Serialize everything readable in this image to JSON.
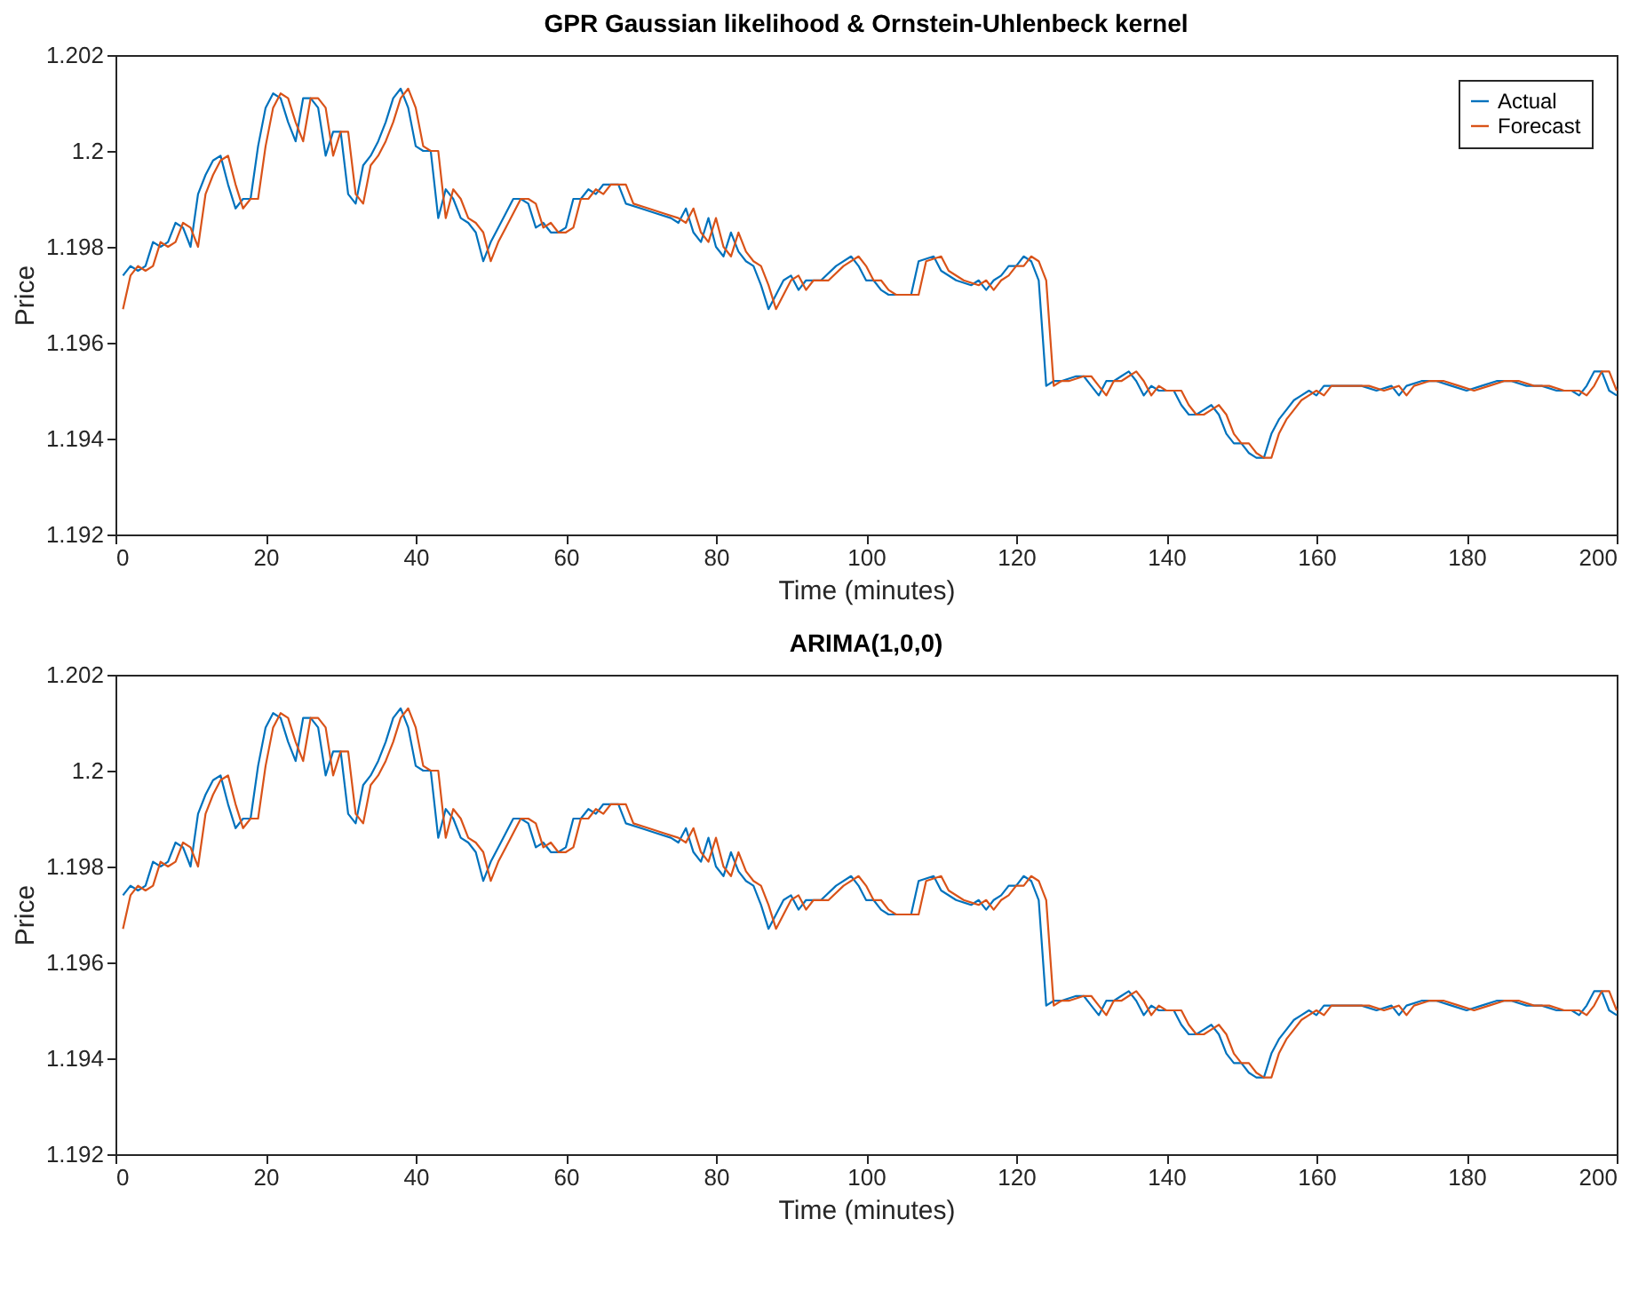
{
  "chart_data": [
    {
      "type": "line",
      "title": "GPR Gaussian likelihood & Ornstein-Uhlenbeck kernel",
      "xlabel": "Time (minutes)",
      "ylabel": "Price",
      "xlim": [
        0,
        200
      ],
      "xticks": [
        0,
        20,
        40,
        60,
        80,
        100,
        120,
        140,
        160,
        180,
        200
      ],
      "ylim": [
        1.192,
        1.202
      ],
      "yticks": [
        1.192,
        1.194,
        1.196,
        1.198,
        1.2,
        1.202
      ],
      "grid": false,
      "legend": "top right",
      "marker": "none",
      "line_style": "solid",
      "series": [
        {
          "name": "Actual",
          "color": "#0072bd",
          "x": [
            1,
            2,
            3,
            4,
            5,
            6,
            7,
            8,
            9,
            10,
            11,
            12,
            13,
            14,
            15,
            16,
            17,
            18,
            19,
            20,
            21,
            22,
            23,
            24,
            25,
            26,
            27,
            28,
            29,
            30,
            31,
            32,
            33,
            34,
            35,
            36,
            37,
            38,
            39,
            40,
            41,
            42,
            43,
            44,
            45,
            46,
            47,
            48,
            49,
            50,
            51,
            52,
            53,
            54,
            55,
            56,
            57,
            58,
            59,
            60,
            61,
            62,
            63,
            64,
            65,
            66,
            67,
            68,
            70,
            72,
            74,
            75,
            76,
            77,
            78,
            79,
            80,
            81,
            82,
            83,
            84,
            85,
            86,
            87,
            88,
            89,
            90,
            91,
            92,
            93,
            94,
            96,
            98,
            99,
            100,
            101,
            102,
            103,
            106,
            107,
            109,
            110,
            112,
            114,
            115,
            116,
            117,
            118,
            119,
            120,
            121,
            122,
            123,
            124,
            125,
            126,
            128,
            129,
            130,
            131,
            132,
            133,
            134,
            135,
            136,
            137,
            138,
            139,
            140,
            141,
            142,
            143,
            144,
            145,
            146,
            147,
            148,
            149,
            150,
            151,
            152,
            153,
            154,
            155,
            156,
            157,
            158,
            159,
            160,
            161,
            162,
            164,
            166,
            168,
            170,
            171,
            172,
            174,
            176,
            178,
            180,
            182,
            184,
            186,
            188,
            190,
            192,
            194,
            195,
            196,
            197,
            198,
            199,
            200
          ],
          "values": [
            1.1974,
            1.1976,
            1.1975,
            1.1976,
            1.1981,
            1.198,
            1.1981,
            1.1985,
            1.1984,
            1.198,
            1.1991,
            1.1995,
            1.1998,
            1.1999,
            1.1993,
            1.1988,
            1.199,
            1.199,
            1.2001,
            1.2009,
            1.2012,
            1.2011,
            1.2006,
            1.2002,
            1.2011,
            1.2011,
            1.2009,
            1.1999,
            1.2004,
            1.2004,
            1.1991,
            1.1989,
            1.1997,
            1.1999,
            1.2002,
            1.2006,
            1.2011,
            1.2013,
            1.2009,
            1.2001,
            1.2,
            1.2,
            1.1986,
            1.1992,
            1.199,
            1.1986,
            1.1985,
            1.1983,
            1.1977,
            1.1981,
            1.1984,
            1.1987,
            1.199,
            1.199,
            1.1989,
            1.1984,
            1.1985,
            1.1983,
            1.1983,
            1.1984,
            1.199,
            1.199,
            1.1992,
            1.1991,
            1.1993,
            1.1993,
            1.1993,
            1.1989,
            1.1988,
            1.1987,
            1.1986,
            1.1985,
            1.1988,
            1.1983,
            1.1981,
            1.1986,
            1.198,
            1.1978,
            1.1983,
            1.1979,
            1.1977,
            1.1976,
            1.1972,
            1.1967,
            1.197,
            1.1973,
            1.1974,
            1.1971,
            1.1973,
            1.1973,
            1.1973,
            1.1976,
            1.1978,
            1.1976,
            1.1973,
            1.1973,
            1.1971,
            1.197,
            1.197,
            1.1977,
            1.1978,
            1.1975,
            1.1973,
            1.1972,
            1.1973,
            1.1971,
            1.1973,
            1.1974,
            1.1976,
            1.1976,
            1.1978,
            1.1977,
            1.1973,
            1.1951,
            1.1952,
            1.1952,
            1.1953,
            1.1953,
            1.1951,
            1.1949,
            1.1952,
            1.1952,
            1.1953,
            1.1954,
            1.1952,
            1.1949,
            1.1951,
            1.195,
            1.195,
            1.195,
            1.1947,
            1.1945,
            1.1945,
            1.1946,
            1.1947,
            1.1945,
            1.1941,
            1.1939,
            1.1939,
            1.1937,
            1.1936,
            1.1936,
            1.1941,
            1.1944,
            1.1946,
            1.1948,
            1.1949,
            1.195,
            1.1949,
            1.1951,
            1.1951,
            1.1951,
            1.1951,
            1.195,
            1.1951,
            1.1949,
            1.1951,
            1.1952,
            1.1952,
            1.1951,
            1.195,
            1.1951,
            1.1952,
            1.1952,
            1.1951,
            1.1951,
            1.195,
            1.195,
            1.1949,
            1.1951,
            1.1954,
            1.1954,
            1.195,
            1.1949
          ]
        },
        {
          "name": "Forecast",
          "color": "#d95319",
          "x": [
            1,
            2,
            3,
            4,
            5,
            6,
            7,
            8,
            9,
            10,
            11,
            12,
            13,
            14,
            15,
            16,
            17,
            18,
            19,
            20,
            21,
            22,
            23,
            24,
            25,
            26,
            27,
            28,
            29,
            30,
            31,
            32,
            33,
            34,
            35,
            36,
            37,
            38,
            39,
            40,
            41,
            42,
            43,
            44,
            45,
            46,
            47,
            48,
            49,
            50,
            51,
            52,
            53,
            54,
            55,
            56,
            57,
            58,
            59,
            60,
            61,
            62,
            63,
            64,
            65,
            66,
            67,
            68,
            69,
            71,
            73,
            75,
            76,
            77,
            78,
            79,
            80,
            81,
            82,
            83,
            84,
            85,
            86,
            87,
            88,
            89,
            90,
            91,
            92,
            93,
            94,
            95,
            97,
            99,
            100,
            101,
            102,
            103,
            104,
            107,
            108,
            110,
            111,
            113,
            115,
            116,
            117,
            118,
            119,
            120,
            121,
            122,
            123,
            124,
            125,
            126,
            127,
            129,
            130,
            131,
            132,
            133,
            134,
            135,
            136,
            137,
            138,
            139,
            140,
            141,
            142,
            143,
            144,
            145,
            146,
            147,
            148,
            149,
            150,
            151,
            152,
            153,
            154,
            155,
            156,
            157,
            158,
            159,
            160,
            161,
            162,
            163,
            165,
            167,
            169,
            171,
            172,
            173,
            175,
            177,
            179,
            181,
            183,
            185,
            187,
            189,
            191,
            193,
            195,
            196,
            197,
            198,
            199,
            200
          ],
          "values": [
            1.1967,
            1.1974,
            1.1976,
            1.1975,
            1.1976,
            1.1981,
            1.198,
            1.1981,
            1.1985,
            1.1984,
            1.198,
            1.1991,
            1.1995,
            1.1998,
            1.1999,
            1.1993,
            1.1988,
            1.199,
            1.199,
            1.2001,
            1.2009,
            1.2012,
            1.2011,
            1.2006,
            1.2002,
            1.2011,
            1.2011,
            1.2009,
            1.1999,
            1.2004,
            1.2004,
            1.1991,
            1.1989,
            1.1997,
            1.1999,
            1.2002,
            1.2006,
            1.2011,
            1.2013,
            1.2009,
            1.2001,
            1.2,
            1.2,
            1.1986,
            1.1992,
            1.199,
            1.1986,
            1.1985,
            1.1983,
            1.1977,
            1.1981,
            1.1984,
            1.1987,
            1.199,
            1.199,
            1.1989,
            1.1984,
            1.1985,
            1.1983,
            1.1983,
            1.1984,
            1.199,
            1.199,
            1.1992,
            1.1991,
            1.1993,
            1.1993,
            1.1993,
            1.1989,
            1.1988,
            1.1987,
            1.1986,
            1.1985,
            1.1988,
            1.1983,
            1.1981,
            1.1986,
            1.198,
            1.1978,
            1.1983,
            1.1979,
            1.1977,
            1.1976,
            1.1972,
            1.1967,
            1.197,
            1.1973,
            1.1974,
            1.1971,
            1.1973,
            1.1973,
            1.1973,
            1.1976,
            1.1978,
            1.1976,
            1.1973,
            1.1973,
            1.1971,
            1.197,
            1.197,
            1.1977,
            1.1978,
            1.1975,
            1.1973,
            1.1972,
            1.1973,
            1.1971,
            1.1973,
            1.1974,
            1.1976,
            1.1976,
            1.1978,
            1.1977,
            1.1973,
            1.1951,
            1.1952,
            1.1952,
            1.1953,
            1.1953,
            1.1951,
            1.1949,
            1.1952,
            1.1952,
            1.1953,
            1.1954,
            1.1952,
            1.1949,
            1.1951,
            1.195,
            1.195,
            1.195,
            1.1947,
            1.1945,
            1.1945,
            1.1946,
            1.1947,
            1.1945,
            1.1941,
            1.1939,
            1.1939,
            1.1937,
            1.1936,
            1.1936,
            1.1941,
            1.1944,
            1.1946,
            1.1948,
            1.1949,
            1.195,
            1.1949,
            1.1951,
            1.1951,
            1.1951,
            1.1951,
            1.195,
            1.1951,
            1.1949,
            1.1951,
            1.1952,
            1.1952,
            1.1951,
            1.195,
            1.1951,
            1.1952,
            1.1952,
            1.1951,
            1.1951,
            1.195,
            1.195,
            1.1949,
            1.1951,
            1.1954,
            1.1954,
            1.195
          ]
        }
      ]
    },
    {
      "type": "line",
      "title": "ARIMA(1,0,0)",
      "xlabel": "Time (minutes)",
      "ylabel": "Price",
      "xlim": [
        0,
        200
      ],
      "xticks": [
        0,
        20,
        40,
        60,
        80,
        100,
        120,
        140,
        160,
        180,
        200
      ],
      "ylim": [
        1.192,
        1.202
      ],
      "yticks": [
        1.192,
        1.194,
        1.196,
        1.198,
        1.2,
        1.202
      ],
      "grid": false,
      "legend": "top right",
      "marker": "none",
      "line_style": "solid",
      "series": [
        {
          "name": "Actual",
          "color": "#0072bd",
          "x": [
            1,
            2,
            3,
            4,
            5,
            6,
            7,
            8,
            9,
            10,
            11,
            12,
            13,
            14,
            15,
            16,
            17,
            18,
            19,
            20,
            21,
            22,
            23,
            24,
            25,
            26,
            27,
            28,
            29,
            30,
            31,
            32,
            33,
            34,
            35,
            36,
            37,
            38,
            39,
            40,
            41,
            42,
            43,
            44,
            45,
            46,
            47,
            48,
            49,
            50,
            51,
            52,
            53,
            54,
            55,
            56,
            57,
            58,
            59,
            60,
            61,
            62,
            63,
            64,
            65,
            66,
            67,
            68,
            70,
            72,
            74,
            75,
            76,
            77,
            78,
            79,
            80,
            81,
            82,
            83,
            84,
            85,
            86,
            87,
            88,
            89,
            90,
            91,
            92,
            93,
            94,
            96,
            98,
            99,
            100,
            101,
            102,
            103,
            106,
            107,
            109,
            110,
            112,
            114,
            115,
            116,
            117,
            118,
            119,
            120,
            121,
            122,
            123,
            124,
            125,
            126,
            128,
            129,
            130,
            131,
            132,
            133,
            134,
            135,
            136,
            137,
            138,
            139,
            140,
            141,
            142,
            143,
            144,
            145,
            146,
            147,
            148,
            149,
            150,
            151,
            152,
            153,
            154,
            155,
            156,
            157,
            158,
            159,
            160,
            161,
            162,
            164,
            166,
            168,
            170,
            171,
            172,
            174,
            176,
            178,
            180,
            182,
            184,
            186,
            188,
            190,
            192,
            194,
            195,
            196,
            197,
            198,
            199,
            200
          ],
          "values": [
            1.1974,
            1.1976,
            1.1975,
            1.1976,
            1.1981,
            1.198,
            1.1981,
            1.1985,
            1.1984,
            1.198,
            1.1991,
            1.1995,
            1.1998,
            1.1999,
            1.1993,
            1.1988,
            1.199,
            1.199,
            1.2001,
            1.2009,
            1.2012,
            1.2011,
            1.2006,
            1.2002,
            1.2011,
            1.2011,
            1.2009,
            1.1999,
            1.2004,
            1.2004,
            1.1991,
            1.1989,
            1.1997,
            1.1999,
            1.2002,
            1.2006,
            1.2011,
            1.2013,
            1.2009,
            1.2001,
            1.2,
            1.2,
            1.1986,
            1.1992,
            1.199,
            1.1986,
            1.1985,
            1.1983,
            1.1977,
            1.1981,
            1.1984,
            1.1987,
            1.199,
            1.199,
            1.1989,
            1.1984,
            1.1985,
            1.1983,
            1.1983,
            1.1984,
            1.199,
            1.199,
            1.1992,
            1.1991,
            1.1993,
            1.1993,
            1.1993,
            1.1989,
            1.1988,
            1.1987,
            1.1986,
            1.1985,
            1.1988,
            1.1983,
            1.1981,
            1.1986,
            1.198,
            1.1978,
            1.1983,
            1.1979,
            1.1977,
            1.1976,
            1.1972,
            1.1967,
            1.197,
            1.1973,
            1.1974,
            1.1971,
            1.1973,
            1.1973,
            1.1973,
            1.1976,
            1.1978,
            1.1976,
            1.1973,
            1.1973,
            1.1971,
            1.197,
            1.197,
            1.1977,
            1.1978,
            1.1975,
            1.1973,
            1.1972,
            1.1973,
            1.1971,
            1.1973,
            1.1974,
            1.1976,
            1.1976,
            1.1978,
            1.1977,
            1.1973,
            1.1951,
            1.1952,
            1.1952,
            1.1953,
            1.1953,
            1.1951,
            1.1949,
            1.1952,
            1.1952,
            1.1953,
            1.1954,
            1.1952,
            1.1949,
            1.1951,
            1.195,
            1.195,
            1.195,
            1.1947,
            1.1945,
            1.1945,
            1.1946,
            1.1947,
            1.1945,
            1.1941,
            1.1939,
            1.1939,
            1.1937,
            1.1936,
            1.1936,
            1.1941,
            1.1944,
            1.1946,
            1.1948,
            1.1949,
            1.195,
            1.1949,
            1.1951,
            1.1951,
            1.1951,
            1.1951,
            1.195,
            1.1951,
            1.1949,
            1.1951,
            1.1952,
            1.1952,
            1.1951,
            1.195,
            1.1951,
            1.1952,
            1.1952,
            1.1951,
            1.1951,
            1.195,
            1.195,
            1.1949,
            1.1951,
            1.1954,
            1.1954,
            1.195,
            1.1949
          ]
        },
        {
          "name": "Forecast",
          "color": "#d95319",
          "x": [
            1,
            2,
            3,
            4,
            5,
            6,
            7,
            8,
            9,
            10,
            11,
            12,
            13,
            14,
            15,
            16,
            17,
            18,
            19,
            20,
            21,
            22,
            23,
            24,
            25,
            26,
            27,
            28,
            29,
            30,
            31,
            32,
            33,
            34,
            35,
            36,
            37,
            38,
            39,
            40,
            41,
            42,
            43,
            44,
            45,
            46,
            47,
            48,
            49,
            50,
            51,
            52,
            53,
            54,
            55,
            56,
            57,
            58,
            59,
            60,
            61,
            62,
            63,
            64,
            65,
            66,
            67,
            68,
            69,
            71,
            73,
            75,
            76,
            77,
            78,
            79,
            80,
            81,
            82,
            83,
            84,
            85,
            86,
            87,
            88,
            89,
            90,
            91,
            92,
            93,
            94,
            95,
            97,
            99,
            100,
            101,
            102,
            103,
            104,
            107,
            108,
            110,
            111,
            113,
            115,
            116,
            117,
            118,
            119,
            120,
            121,
            122,
            123,
            124,
            125,
            126,
            127,
            129,
            130,
            131,
            132,
            133,
            134,
            135,
            136,
            137,
            138,
            139,
            140,
            141,
            142,
            143,
            144,
            145,
            146,
            147,
            148,
            149,
            150,
            151,
            152,
            153,
            154,
            155,
            156,
            157,
            158,
            159,
            160,
            161,
            162,
            163,
            165,
            167,
            169,
            171,
            172,
            173,
            175,
            177,
            179,
            181,
            183,
            185,
            187,
            189,
            191,
            193,
            195,
            196,
            197,
            198,
            199,
            200
          ],
          "values": [
            1.1967,
            1.1974,
            1.1976,
            1.1975,
            1.1976,
            1.1981,
            1.198,
            1.1981,
            1.1985,
            1.1984,
            1.198,
            1.1991,
            1.1995,
            1.1998,
            1.1999,
            1.1993,
            1.1988,
            1.199,
            1.199,
            1.2001,
            1.2009,
            1.2012,
            1.2011,
            1.2006,
            1.2002,
            1.2011,
            1.2011,
            1.2009,
            1.1999,
            1.2004,
            1.2004,
            1.1991,
            1.1989,
            1.1997,
            1.1999,
            1.2002,
            1.2006,
            1.2011,
            1.2013,
            1.2009,
            1.2001,
            1.2,
            1.2,
            1.1986,
            1.1992,
            1.199,
            1.1986,
            1.1985,
            1.1983,
            1.1977,
            1.1981,
            1.1984,
            1.1987,
            1.199,
            1.199,
            1.1989,
            1.1984,
            1.1985,
            1.1983,
            1.1983,
            1.1984,
            1.199,
            1.199,
            1.1992,
            1.1991,
            1.1993,
            1.1993,
            1.1993,
            1.1989,
            1.1988,
            1.1987,
            1.1986,
            1.1985,
            1.1988,
            1.1983,
            1.1981,
            1.1986,
            1.198,
            1.1978,
            1.1983,
            1.1979,
            1.1977,
            1.1976,
            1.1972,
            1.1967,
            1.197,
            1.1973,
            1.1974,
            1.1971,
            1.1973,
            1.1973,
            1.1973,
            1.1976,
            1.1978,
            1.1976,
            1.1973,
            1.1973,
            1.1971,
            1.197,
            1.197,
            1.1977,
            1.1978,
            1.1975,
            1.1973,
            1.1972,
            1.1973,
            1.1971,
            1.1973,
            1.1974,
            1.1976,
            1.1976,
            1.1978,
            1.1977,
            1.1973,
            1.1951,
            1.1952,
            1.1952,
            1.1953,
            1.1953,
            1.1951,
            1.1949,
            1.1952,
            1.1952,
            1.1953,
            1.1954,
            1.1952,
            1.1949,
            1.1951,
            1.195,
            1.195,
            1.195,
            1.1947,
            1.1945,
            1.1945,
            1.1946,
            1.1947,
            1.1945,
            1.1941,
            1.1939,
            1.1939,
            1.1937,
            1.1936,
            1.1936,
            1.1941,
            1.1944,
            1.1946,
            1.1948,
            1.1949,
            1.195,
            1.1949,
            1.1951,
            1.1951,
            1.1951,
            1.1951,
            1.195,
            1.1951,
            1.1949,
            1.1951,
            1.1952,
            1.1952,
            1.1951,
            1.195,
            1.1951,
            1.1952,
            1.1952,
            1.1951,
            1.1951,
            1.195,
            1.195,
            1.1949,
            1.1951,
            1.1954,
            1.1954,
            1.195
          ]
        }
      ]
    }
  ]
}
